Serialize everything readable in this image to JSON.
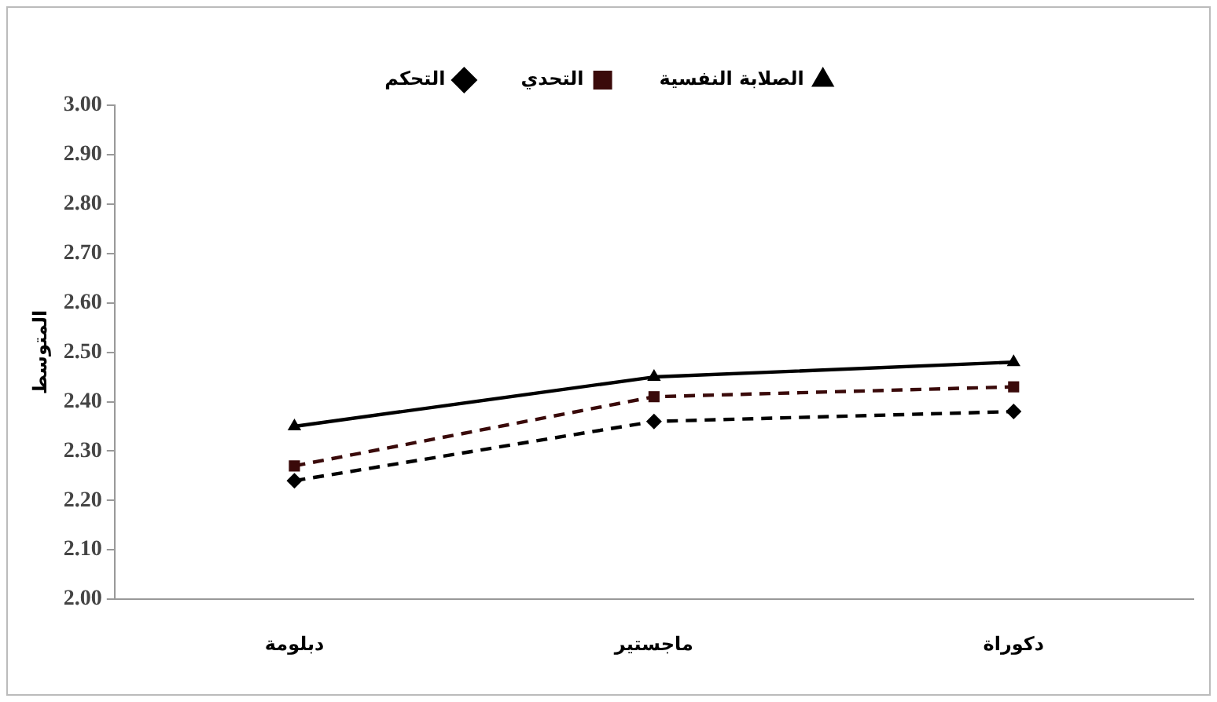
{
  "chart_data": {
    "type": "line",
    "ylabel": "المتوسط",
    "categories": [
      "دبلومة",
      "ماجستير",
      "دكوراة"
    ],
    "series": [
      {
        "name": "الصلابة النفسية",
        "color": "#000000",
        "marker": "triangle",
        "line_style": "solid",
        "values": [
          2.35,
          2.45,
          2.48
        ]
      },
      {
        "name": "التحدي",
        "color": "#3a0a0a",
        "marker": "square",
        "line_style": "dashed",
        "values": [
          2.27,
          2.41,
          2.43
        ]
      },
      {
        "name": "التحكم",
        "color": "#000000",
        "marker": "diamond",
        "line_style": "dashed",
        "values": [
          2.24,
          2.36,
          2.38
        ]
      }
    ],
    "ylim": [
      2,
      3
    ],
    "yticks": [
      {
        "value": 2,
        "label": "2.00"
      },
      {
        "value": 2.1,
        "label": "2.10"
      },
      {
        "value": 2.2,
        "label": "2.20"
      },
      {
        "value": 2.3,
        "label": "2.30"
      },
      {
        "value": 2.4,
        "label": "2.40"
      },
      {
        "value": 2.5,
        "label": "2.50"
      },
      {
        "value": 2.6,
        "label": "2.60"
      },
      {
        "value": 2.7,
        "label": "2.70"
      },
      {
        "value": 2.8,
        "label": "2.80"
      },
      {
        "value": 2.9,
        "label": "2.90"
      },
      {
        "value": 3,
        "label": "3.00"
      }
    ],
    "grid": false,
    "legend": "top"
  }
}
